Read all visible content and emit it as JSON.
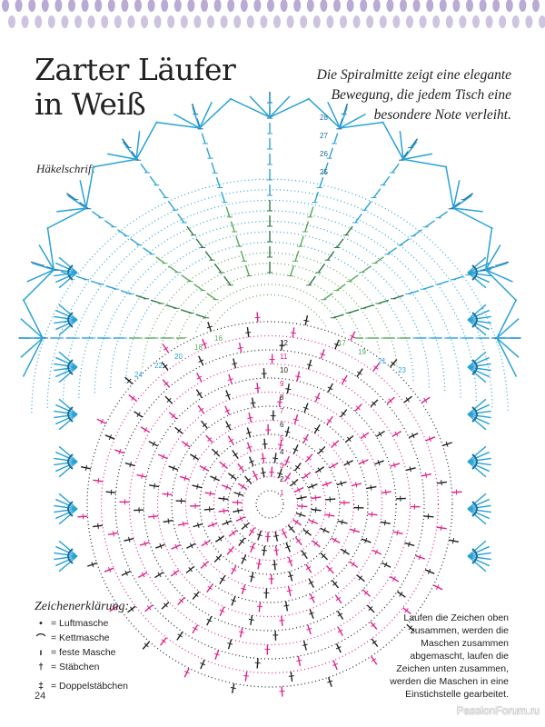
{
  "header": {
    "title_line1": "Zarter Läufer",
    "title_line2": "in Weiß",
    "intro_lines": [
      "Die Spiralmitte zeigt eine elegante",
      "Bewegung, die jedem Tisch eine",
      "besondere Note verleiht."
    ]
  },
  "subheading": "Häkelschrift",
  "diagram": {
    "colors": {
      "outer_blue": "#29a3d6",
      "dark_blue": "#1a6b9c",
      "green": "#5aa85a",
      "dark_green": "#2f7a45",
      "pink": "#e0208a",
      "black": "#222222",
      "border": "#b9abd3"
    },
    "round_labels_top": [
      "28",
      "27",
      "26",
      "25"
    ],
    "round_labels_left": [
      "16",
      "18",
      "20",
      "22",
      "24"
    ],
    "round_labels_right": [
      "17",
      "19",
      "21",
      "23"
    ],
    "round_labels_center": [
      "12",
      "11",
      "10",
      "9",
      "8",
      "7",
      "6",
      "5",
      "4",
      "3",
      "2",
      "1"
    ]
  },
  "legend": {
    "title": "Zeichenerklärung:",
    "items": [
      {
        "symbol": "•",
        "label": "= Luftmasche"
      },
      {
        "symbol": "⌒",
        "label": "= Kettmasche"
      },
      {
        "symbol": "ı",
        "label": "= feste Masche"
      },
      {
        "symbol": "†",
        "label": "= Stäbchen"
      },
      {
        "symbol": "‡",
        "label": "= Doppelstäbchen"
      }
    ]
  },
  "note_lines": [
    "Laufen die Zeichen oben",
    "zusammen, werden die",
    "Maschen zusammen",
    "abgemascht, laufen die",
    "Zeichen unten zusammen,",
    "werden die Maschen in eine",
    "Einstichstelle gearbeitet."
  ],
  "page_number": "24",
  "watermark": "PassionForum.ru"
}
